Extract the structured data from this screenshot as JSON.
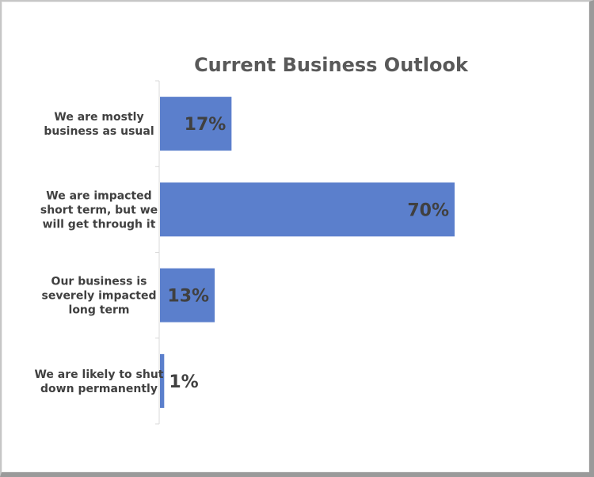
{
  "chart_data": {
    "type": "bar",
    "orientation": "horizontal",
    "title": "Current Business Outlook",
    "xlabel": "",
    "ylabel": "",
    "categories": [
      [
        "We are mostly",
        "business as usual"
      ],
      [
        "We are impacted",
        "short term, but we",
        "will get through it"
      ],
      [
        "Our business is",
        "severely impacted",
        "long term"
      ],
      [
        "We are likely to shut",
        "down permanently"
      ]
    ],
    "values": [
      17,
      70,
      13,
      1
    ],
    "data_labels": [
      "17%",
      "70%",
      "13%",
      "1%"
    ],
    "xlim": [
      0,
      70
    ],
    "grid": false,
    "legend": "none",
    "bar_color": "#5b7fcc",
    "axis_color": "#d9d9d9",
    "label_color": "#404040",
    "title_color": "#595959"
  }
}
